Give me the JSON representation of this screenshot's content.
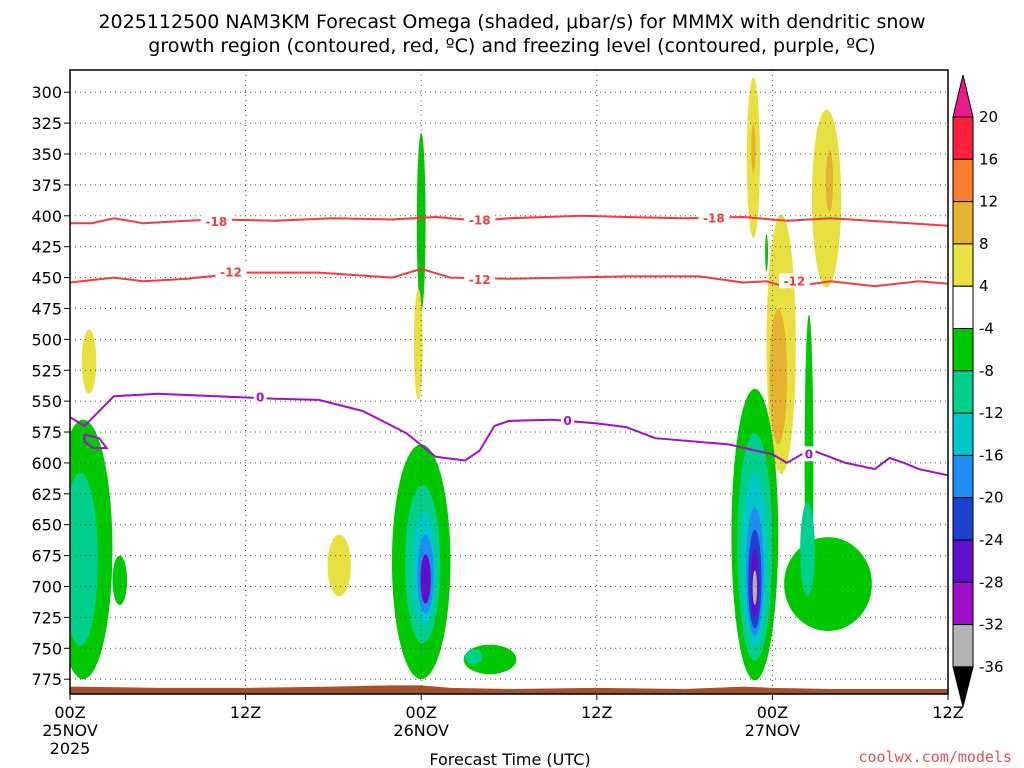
{
  "chart_data": {
    "type": "heatmap",
    "title_line1": "2025112500 NAM3KM Forecast Omega (shaded, μbar/s) for MMMX with dendritic snow",
    "title_line2": "growth region (contoured, red, ºC) and freezing level (contoured, purple, ºC)",
    "xlabel": "Forecast Time (UTC)",
    "credit": "coolwx.com/models",
    "x_axis": {
      "unit": "hours",
      "range": [
        0,
        60
      ],
      "ticks": [
        {
          "x": 0,
          "label": "00Z",
          "sub1": "25NOV",
          "sub2": "2025"
        },
        {
          "x": 12,
          "label": "12Z",
          "sub1": "",
          "sub2": ""
        },
        {
          "x": 24,
          "label": "00Z",
          "sub1": "26NOV",
          "sub2": ""
        },
        {
          "x": 36,
          "label": "12Z",
          "sub1": "",
          "sub2": ""
        },
        {
          "x": 48,
          "label": "00Z",
          "sub1": "27NOV",
          "sub2": ""
        },
        {
          "x": 60,
          "label": "12Z",
          "sub1": "",
          "sub2": ""
        }
      ]
    },
    "y_axis": {
      "unit": "hPa",
      "range": [
        282,
        787
      ],
      "inverted": true,
      "ticks": [
        300,
        325,
        350,
        375,
        400,
        425,
        450,
        475,
        500,
        525,
        550,
        575,
        600,
        625,
        650,
        675,
        700,
        725,
        750,
        775
      ]
    },
    "grid": true,
    "colorbar": {
      "labels": [
        "20",
        "16",
        "12",
        "8",
        "4",
        "-4",
        "-8",
        "-12",
        "-16",
        "-20",
        "-24",
        "-28",
        "-32",
        "-36"
      ],
      "colors": [
        "#ff1f3f",
        "#f97e2e",
        "#e7b230",
        "#e8e041",
        "#ffffff",
        "#00c800",
        "#00d08c",
        "#00c8c8",
        "#1e8ef0",
        "#2040d0",
        "#6010c8",
        "#a010c8",
        "#b4b4b4",
        "#000000"
      ],
      "top_arrow_color": "#ee1a8c"
    },
    "contours": [
      {
        "name": "-18",
        "color": "#f03c3c",
        "points": [
          [
            0,
            406
          ],
          [
            1.5,
            406
          ],
          [
            3,
            402
          ],
          [
            5,
            406
          ],
          [
            8,
            404
          ],
          [
            10,
            403
          ],
          [
            14,
            404
          ],
          [
            18,
            402
          ],
          [
            22,
            403
          ],
          [
            25,
            401
          ],
          [
            28,
            404
          ],
          [
            30,
            402
          ],
          [
            35,
            400
          ],
          [
            38,
            401
          ],
          [
            42,
            402
          ],
          [
            46,
            401
          ],
          [
            49,
            404
          ],
          [
            52,
            402
          ],
          [
            56,
            405
          ],
          [
            60,
            408
          ]
        ],
        "labels": [
          [
            10,
            405
          ],
          [
            28,
            404
          ],
          [
            44,
            402
          ]
        ]
      },
      {
        "name": "-12",
        "color": "#f03c3c",
        "points": [
          [
            0,
            454
          ],
          [
            3,
            450
          ],
          [
            5,
            453
          ],
          [
            8,
            451
          ],
          [
            12,
            446
          ],
          [
            17,
            446
          ],
          [
            22,
            450
          ],
          [
            24,
            443
          ],
          [
            26,
            450
          ],
          [
            30,
            451
          ],
          [
            34,
            450
          ],
          [
            38,
            449
          ],
          [
            43,
            449
          ],
          [
            46,
            454
          ],
          [
            47.6,
            453
          ],
          [
            49,
            458
          ],
          [
            52,
            453
          ],
          [
            55,
            457
          ],
          [
            58,
            453
          ],
          [
            60,
            455
          ]
        ],
        "labels": [
          [
            11,
            446
          ],
          [
            28,
            452
          ],
          [
            49.5,
            453
          ]
        ]
      },
      {
        "name": "0",
        "color": "#a010c8",
        "points": [
          [
            0,
            563
          ],
          [
            1,
            570
          ],
          [
            3,
            546
          ],
          [
            6,
            544
          ],
          [
            10,
            546
          ],
          [
            14,
            548
          ],
          [
            17,
            549
          ],
          [
            20,
            558
          ],
          [
            23,
            576
          ],
          [
            25,
            595
          ],
          [
            27,
            598
          ],
          [
            28,
            590
          ],
          [
            29,
            570
          ],
          [
            30,
            566
          ],
          [
            33,
            565
          ],
          [
            36,
            568
          ],
          [
            38,
            571
          ],
          [
            40,
            580
          ],
          [
            45,
            585
          ],
          [
            48,
            593
          ],
          [
            49,
            600
          ],
          [
            50,
            593
          ],
          [
            51,
            591
          ],
          [
            53,
            600
          ],
          [
            55,
            605
          ],
          [
            56,
            596
          ],
          [
            57,
            600
          ],
          [
            58,
            605
          ],
          [
            60,
            610
          ]
        ],
        "labels": [
          [
            13,
            547
          ],
          [
            34,
            566
          ],
          [
            50.5,
            593
          ]
        ]
      },
      {
        "name": "0-small",
        "color": "#a010c8",
        "points": [
          [
            1,
            577
          ],
          [
            2,
            580
          ],
          [
            2.5,
            588
          ],
          [
            1.6,
            588
          ],
          [
            1,
            583
          ],
          [
            1,
            577
          ]
        ],
        "labels": []
      }
    ],
    "omega_regions": [
      {
        "color": "#00c800",
        "center": [
          0.9,
          670
        ],
        "rx": 2.0,
        "ry": 105
      },
      {
        "color": "#00d08c",
        "center": [
          0.7,
          678
        ],
        "rx": 1.2,
        "ry": 70
      },
      {
        "color": "#00c800",
        "center": [
          3.4,
          695
        ],
        "rx": 0.5,
        "ry": 20
      },
      {
        "color": "#e8e041",
        "center": [
          1.3,
          518
        ],
        "rx": 0.5,
        "ry": 26
      },
      {
        "color": "#e8e041",
        "center": [
          18.4,
          683
        ],
        "rx": 0.8,
        "ry": 25
      },
      {
        "color": "#00c800",
        "center": [
          24.0,
          405
        ],
        "rx": 0.3,
        "ry": 72
      },
      {
        "color": "#e8e041",
        "center": [
          23.8,
          504
        ],
        "rx": 0.3,
        "ry": 45
      },
      {
        "color": "#00c800",
        "center": [
          24.0,
          680
        ],
        "rx": 2.0,
        "ry": 95
      },
      {
        "color": "#00d08c",
        "center": [
          24.1,
          682
        ],
        "rx": 1.2,
        "ry": 64
      },
      {
        "color": "#00c8c8",
        "center": [
          24.2,
          686
        ],
        "rx": 0.8,
        "ry": 46
      },
      {
        "color": "#1e8ef0",
        "center": [
          24.3,
          690
        ],
        "rx": 0.55,
        "ry": 32
      },
      {
        "color": "#6010c8",
        "center": [
          24.3,
          694
        ],
        "rx": 0.35,
        "ry": 20
      },
      {
        "color": "#00c800",
        "center": [
          28.7,
          759
        ],
        "rx": 1.8,
        "ry": 12
      },
      {
        "color": "#00d08c",
        "center": [
          27.6,
          757
        ],
        "rx": 0.6,
        "ry": 6
      },
      {
        "color": "#e8e041",
        "center": [
          46.7,
          353
        ],
        "rx": 0.45,
        "ry": 65
      },
      {
        "color": "#e7b230",
        "center": [
          46.7,
          345
        ],
        "rx": 0.15,
        "ry": 20
      },
      {
        "color": "#e8e041",
        "center": [
          51.7,
          386
        ],
        "rx": 1.0,
        "ry": 72
      },
      {
        "color": "#e7b230",
        "center": [
          51.9,
          372
        ],
        "rx": 0.25,
        "ry": 25
      },
      {
        "color": "#e8e041",
        "center": [
          48.6,
          504
        ],
        "rx": 1.0,
        "ry": 105
      },
      {
        "color": "#e7b230",
        "center": [
          48.4,
          530
        ],
        "rx": 0.6,
        "ry": 55
      },
      {
        "color": "#00c800",
        "center": [
          47.6,
          430
        ],
        "rx": 0.1,
        "ry": 15
      },
      {
        "color": "#00c800",
        "center": [
          46.8,
          658
        ],
        "rx": 1.6,
        "ry": 118
      },
      {
        "color": "#00d08c",
        "center": [
          46.8,
          668
        ],
        "rx": 1.2,
        "ry": 92
      },
      {
        "color": "#00c8c8",
        "center": [
          46.8,
          678
        ],
        "rx": 0.85,
        "ry": 70
      },
      {
        "color": "#1e8ef0",
        "center": [
          46.8,
          688
        ],
        "rx": 0.6,
        "ry": 52
      },
      {
        "color": "#2040d0",
        "center": [
          46.8,
          694
        ],
        "rx": 0.45,
        "ry": 40
      },
      {
        "color": "#6010c8",
        "center": [
          46.8,
          698
        ],
        "rx": 0.3,
        "ry": 28
      },
      {
        "color": "#b4b4b4",
        "center": [
          46.8,
          701
        ],
        "rx": 0.15,
        "ry": 14
      },
      {
        "color": "#00c800",
        "center": [
          50.5,
          600
        ],
        "rx": 0.3,
        "ry": 120
      },
      {
        "color": "#00c800",
        "center": [
          51.8,
          698
        ],
        "rx": 3.0,
        "ry": 38
      },
      {
        "color": "#00d08c",
        "center": [
          50.4,
          670
        ],
        "rx": 0.5,
        "ry": 38
      }
    ],
    "terrain_color": "#a0522d",
    "terrain": [
      [
        0,
        781
      ],
      [
        6,
        782
      ],
      [
        12,
        782
      ],
      [
        18,
        781
      ],
      [
        22,
        780
      ],
      [
        24,
        780
      ],
      [
        26,
        782
      ],
      [
        30,
        783
      ],
      [
        36,
        782
      ],
      [
        42,
        783
      ],
      [
        46,
        781
      ],
      [
        48,
        782
      ],
      [
        52,
        783
      ],
      [
        60,
        783
      ]
    ],
    "bottom_pressure": 787
  }
}
